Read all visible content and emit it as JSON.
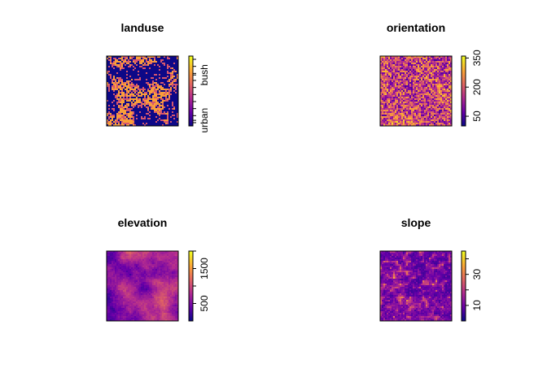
{
  "chart_data": [
    {
      "type": "heatmap",
      "title": "landuse",
      "legend": "right",
      "palette": [
        "#0d0887",
        "#6a00a8",
        "#b12a90",
        "#e16462",
        "#fca636",
        "#f0f921"
      ],
      "legend_ticks": [
        {
          "label": "urban",
          "value": 0.08
        },
        {
          "label": "bush",
          "value": 0.73
        }
      ],
      "categorical_ticks": 10
    },
    {
      "type": "heatmap",
      "title": "orientation",
      "legend": "right",
      "value_range": [
        0,
        360
      ],
      "palette": [
        "#0d0887",
        "#6a00a8",
        "#b12a90",
        "#e16462",
        "#fca636",
        "#f0f921"
      ],
      "legend_ticks": [
        {
          "label": "50",
          "value": 50
        },
        {
          "label": "200",
          "value": 200
        },
        {
          "label": "350",
          "value": 350
        }
      ]
    },
    {
      "type": "heatmap",
      "title": "elevation",
      "legend": "right",
      "value_range": [
        0,
        2000
      ],
      "palette": [
        "#0d0887",
        "#6a00a8",
        "#b12a90",
        "#e16462",
        "#fca636",
        "#f0f921"
      ],
      "legend_ticks": [
        {
          "label": "500",
          "value": 500
        },
        {
          "label": "1500",
          "value": 1500
        }
      ],
      "minor_ticks": [
        1000,
        2000
      ]
    },
    {
      "type": "heatmap",
      "title": "slope",
      "legend": "right",
      "value_range": [
        0,
        45
      ],
      "palette": [
        "#0d0887",
        "#6a00a8",
        "#b12a90",
        "#e16462",
        "#fca636",
        "#f0f921"
      ],
      "legend_ticks": [
        {
          "label": "10",
          "value": 10
        },
        {
          "label": "30",
          "value": 30
        }
      ],
      "minor_ticks": [
        20,
        40
      ]
    }
  ]
}
